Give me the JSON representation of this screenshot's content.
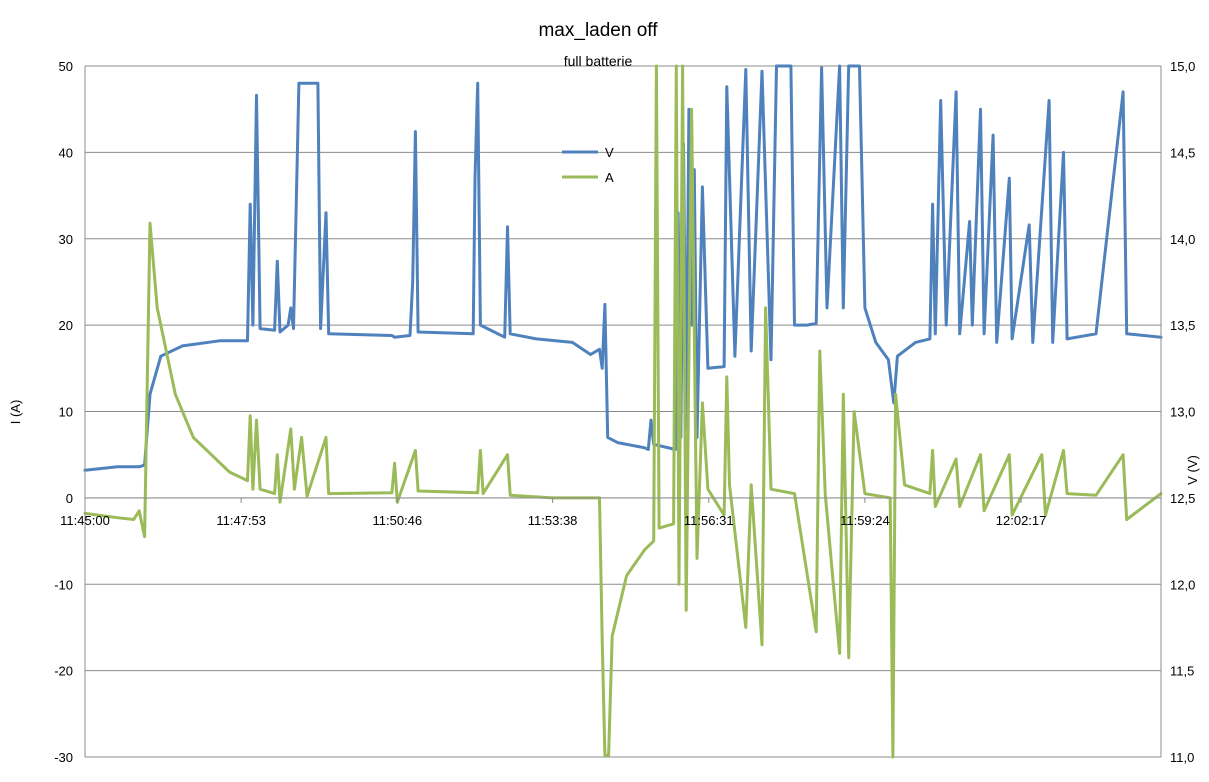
{
  "chart_data": {
    "type": "line",
    "title": "max_laden off",
    "subtitle": "full batterie",
    "ylabel_left": "I (A)",
    "ylabel_right": "V (V)",
    "y_left_range": [
      -30,
      50
    ],
    "y_left_ticks": [
      "50",
      "40",
      "30",
      "20",
      "10",
      "0",
      "-10",
      "-20",
      "-30"
    ],
    "y_right_range": [
      11.0,
      15.0
    ],
    "y_right_ticks": [
      "15,0",
      "14,5",
      "14,0",
      "13,5",
      "13,0",
      "12,5",
      "12,0",
      "11,5",
      "11,0"
    ],
    "x_tick_labels": [
      "11:45:00",
      "11:47:53",
      "11:50:46",
      "11:53:38",
      "11:56:31",
      "11:59:24",
      "12:02:17"
    ],
    "x_range": [
      "11:45:00",
      "12:04:52"
    ],
    "grid": true,
    "legend_position": "top-center",
    "series": [
      {
        "name": "V",
        "axis": "right",
        "color": "#4F81BD",
        "points": [
          [
            "11:45:00",
            12.66
          ],
          [
            "11:45:18",
            12.67
          ],
          [
            "11:45:36",
            12.68
          ],
          [
            "11:46:00",
            12.68
          ],
          [
            "11:46:06",
            12.69
          ],
          [
            "11:46:12",
            13.1
          ],
          [
            "11:46:24",
            13.32
          ],
          [
            "11:46:48",
            13.38
          ],
          [
            "11:47:30",
            13.41
          ],
          [
            "11:48:00",
            13.41
          ],
          [
            "11:48:03",
            14.2
          ],
          [
            "11:48:06",
            13.5
          ],
          [
            "11:48:10",
            14.83
          ],
          [
            "11:48:14",
            13.48
          ],
          [
            "11:48:30",
            13.47
          ],
          [
            "11:48:33",
            13.87
          ],
          [
            "11:48:36",
            13.46
          ],
          [
            "11:48:45",
            13.5
          ],
          [
            "11:48:48",
            13.6
          ],
          [
            "11:48:51",
            13.48
          ],
          [
            "11:48:57",
            14.9
          ],
          [
            "11:49:18",
            14.9
          ],
          [
            "11:49:21",
            13.48
          ],
          [
            "11:49:27",
            14.15
          ],
          [
            "11:49:30",
            13.45
          ],
          [
            "11:50:40",
            13.44
          ],
          [
            "11:50:43",
            13.43
          ],
          [
            "11:51:00",
            13.44
          ],
          [
            "11:51:03",
            13.75
          ],
          [
            "11:51:06",
            14.62
          ],
          [
            "11:51:09",
            13.46
          ],
          [
            "11:52:10",
            13.45
          ],
          [
            "11:52:12",
            14.35
          ],
          [
            "11:52:15",
            14.9
          ],
          [
            "11:52:18",
            13.5
          ],
          [
            "11:52:45",
            13.43
          ],
          [
            "11:52:48",
            14.07
          ],
          [
            "11:52:51",
            13.45
          ],
          [
            "11:53:20",
            13.42
          ],
          [
            "11:54:00",
            13.4
          ],
          [
            "11:54:20",
            13.33
          ],
          [
            "11:54:30",
            13.36
          ],
          [
            "11:54:33",
            13.25
          ],
          [
            "11:54:36",
            13.62
          ],
          [
            "11:54:39",
            12.85
          ],
          [
            "11:54:50",
            12.82
          ],
          [
            "11:55:20",
            12.79
          ],
          [
            "11:55:24",
            12.78
          ],
          [
            "11:55:27",
            12.95
          ],
          [
            "11:55:30",
            12.81
          ],
          [
            "11:55:54",
            12.78
          ],
          [
            "11:55:57",
            14.15
          ],
          [
            "11:56:00",
            12.85
          ],
          [
            "11:56:03",
            14.55
          ],
          [
            "11:56:06",
            12.9
          ],
          [
            "11:56:09",
            14.75
          ],
          [
            "11:56:12",
            13.5
          ],
          [
            "11:56:15",
            14.4
          ],
          [
            "11:56:18",
            12.85
          ],
          [
            "11:56:24",
            14.3
          ],
          [
            "11:56:30",
            13.25
          ],
          [
            "11:56:48",
            13.26
          ],
          [
            "11:56:51",
            14.88
          ],
          [
            "11:57:00",
            13.32
          ],
          [
            "11:57:12",
            14.98
          ],
          [
            "11:57:18",
            13.35
          ],
          [
            "11:57:30",
            14.97
          ],
          [
            "11:57:40",
            13.3
          ],
          [
            "11:57:46",
            15.0
          ],
          [
            "11:58:02",
            15.0
          ],
          [
            "11:58:06",
            13.5
          ],
          [
            "11:58:20",
            13.5
          ],
          [
            "11:58:30",
            13.51
          ],
          [
            "11:58:36",
            14.99
          ],
          [
            "11:58:42",
            13.6
          ],
          [
            "11:58:56",
            15.0
          ],
          [
            "11:59:00",
            13.6
          ],
          [
            "11:59:06",
            15.0
          ],
          [
            "11:59:18",
            15.0
          ],
          [
            "11:59:24",
            13.6
          ],
          [
            "11:59:36",
            13.4
          ],
          [
            "11:59:50",
            13.3
          ],
          [
            "11:59:56",
            13.05
          ],
          [
            "12:00:00",
            13.32
          ],
          [
            "12:00:20",
            13.4
          ],
          [
            "12:00:36",
            13.42
          ],
          [
            "12:00:39",
            14.2
          ],
          [
            "12:00:42",
            13.45
          ],
          [
            "12:00:48",
            14.8
          ],
          [
            "12:00:54",
            13.5
          ],
          [
            "12:01:05",
            14.85
          ],
          [
            "12:01:09",
            13.45
          ],
          [
            "12:01:20",
            14.1
          ],
          [
            "12:01:23",
            13.5
          ],
          [
            "12:01:32",
            14.75
          ],
          [
            "12:01:36",
            13.45
          ],
          [
            "12:01:46",
            14.6
          ],
          [
            "12:01:50",
            13.4
          ],
          [
            "12:02:04",
            14.35
          ],
          [
            "12:02:07",
            13.42
          ],
          [
            "12:02:26",
            14.08
          ],
          [
            "12:02:30",
            13.4
          ],
          [
            "12:02:48",
            14.8
          ],
          [
            "12:02:52",
            13.4
          ],
          [
            "12:03:04",
            14.5
          ],
          [
            "12:03:08",
            13.42
          ],
          [
            "12:03:40",
            13.45
          ],
          [
            "12:04:10",
            14.85
          ],
          [
            "12:04:14",
            13.45
          ],
          [
            "12:04:52",
            13.43
          ]
        ]
      },
      {
        "name": "A",
        "axis": "left",
        "color": "#9BBB59",
        "points": [
          [
            "11:45:00",
            -1.8
          ],
          [
            "11:45:36",
            -2.3
          ],
          [
            "11:45:54",
            -2.5
          ],
          [
            "11:46:00",
            -1.5
          ],
          [
            "11:46:06",
            -4.5
          ],
          [
            "11:46:12",
            31.8
          ],
          [
            "11:46:20",
            22.0
          ],
          [
            "11:46:40",
            12.0
          ],
          [
            "11:47:00",
            7.0
          ],
          [
            "11:47:20",
            5.0
          ],
          [
            "11:47:40",
            3.0
          ],
          [
            "11:48:00",
            2.0
          ],
          [
            "11:48:03",
            9.5
          ],
          [
            "11:48:06",
            1.0
          ],
          [
            "11:48:10",
            9.0
          ],
          [
            "11:48:14",
            1.0
          ],
          [
            "11:48:30",
            0.5
          ],
          [
            "11:48:33",
            5.0
          ],
          [
            "11:48:36",
            -0.5
          ],
          [
            "11:48:48",
            8.0
          ],
          [
            "11:48:52",
            1.0
          ],
          [
            "11:49:00",
            7.0
          ],
          [
            "11:49:06",
            0.2
          ],
          [
            "11:49:27",
            7.0
          ],
          [
            "11:49:30",
            0.5
          ],
          [
            "11:50:40",
            0.6
          ],
          [
            "11:50:43",
            4.0
          ],
          [
            "11:50:46",
            -0.5
          ],
          [
            "11:51:06",
            5.5
          ],
          [
            "11:51:09",
            0.8
          ],
          [
            "11:52:15",
            0.6
          ],
          [
            "11:52:18",
            5.5
          ],
          [
            "11:52:21",
            0.5
          ],
          [
            "11:52:48",
            5.0
          ],
          [
            "11:52:51",
            0.3
          ],
          [
            "11:53:38",
            0.0
          ],
          [
            "11:54:30",
            0.0
          ],
          [
            "11:54:33",
            -16.5
          ],
          [
            "11:54:36",
            -29.8
          ],
          [
            "11:54:40",
            -29.8
          ],
          [
            "11:54:44",
            -16.0
          ],
          [
            "11:55:00",
            -9.0
          ],
          [
            "11:55:20",
            -6.0
          ],
          [
            "11:55:30",
            -5.0
          ],
          [
            "11:55:33",
            50.0
          ],
          [
            "11:55:36",
            -3.5
          ],
          [
            "11:55:52",
            -3.0
          ],
          [
            "11:55:55",
            50.0
          ],
          [
            "11:55:58",
            -10.0
          ],
          [
            "11:56:02",
            50.0
          ],
          [
            "11:56:06",
            -13.0
          ],
          [
            "11:56:12",
            45.0
          ],
          [
            "11:56:18",
            -7.0
          ],
          [
            "11:56:24",
            11.0
          ],
          [
            "11:56:30",
            1.0
          ],
          [
            "11:56:48",
            -2.0
          ],
          [
            "11:56:51",
            14.0
          ],
          [
            "11:56:54",
            1.5
          ],
          [
            "11:57:12",
            -15.0
          ],
          [
            "11:57:18",
            1.5
          ],
          [
            "11:57:30",
            -17.0
          ],
          [
            "11:57:34",
            22.0
          ],
          [
            "11:57:40",
            1.0
          ],
          [
            "11:58:06",
            0.5
          ],
          [
            "11:58:30",
            -15.5
          ],
          [
            "11:58:34",
            17.0
          ],
          [
            "11:58:40",
            0.5
          ],
          [
            "11:58:56",
            -18.0
          ],
          [
            "11:59:00",
            12.0
          ],
          [
            "11:59:06",
            -18.5
          ],
          [
            "11:59:12",
            10.0
          ],
          [
            "11:59:24",
            0.5
          ],
          [
            "11:59:52",
            0.0
          ],
          [
            "11:59:55",
            -30.0
          ],
          [
            "11:59:58",
            12.0
          ],
          [
            "12:00:08",
            1.5
          ],
          [
            "12:00:36",
            0.5
          ],
          [
            "12:00:39",
            5.5
          ],
          [
            "12:00:42",
            -1.0
          ],
          [
            "12:01:05",
            4.5
          ],
          [
            "12:01:09",
            -1.0
          ],
          [
            "12:01:32",
            5.0
          ],
          [
            "12:01:36",
            -1.5
          ],
          [
            "12:02:04",
            5.0
          ],
          [
            "12:02:07",
            -2.0
          ],
          [
            "12:02:40",
            5.0
          ],
          [
            "12:02:44",
            -2.0
          ],
          [
            "12:03:04",
            5.5
          ],
          [
            "12:03:08",
            0.5
          ],
          [
            "12:03:40",
            0.3
          ],
          [
            "12:04:10",
            5.0
          ],
          [
            "12:04:14",
            -2.5
          ],
          [
            "12:04:52",
            0.5
          ]
        ]
      }
    ]
  }
}
